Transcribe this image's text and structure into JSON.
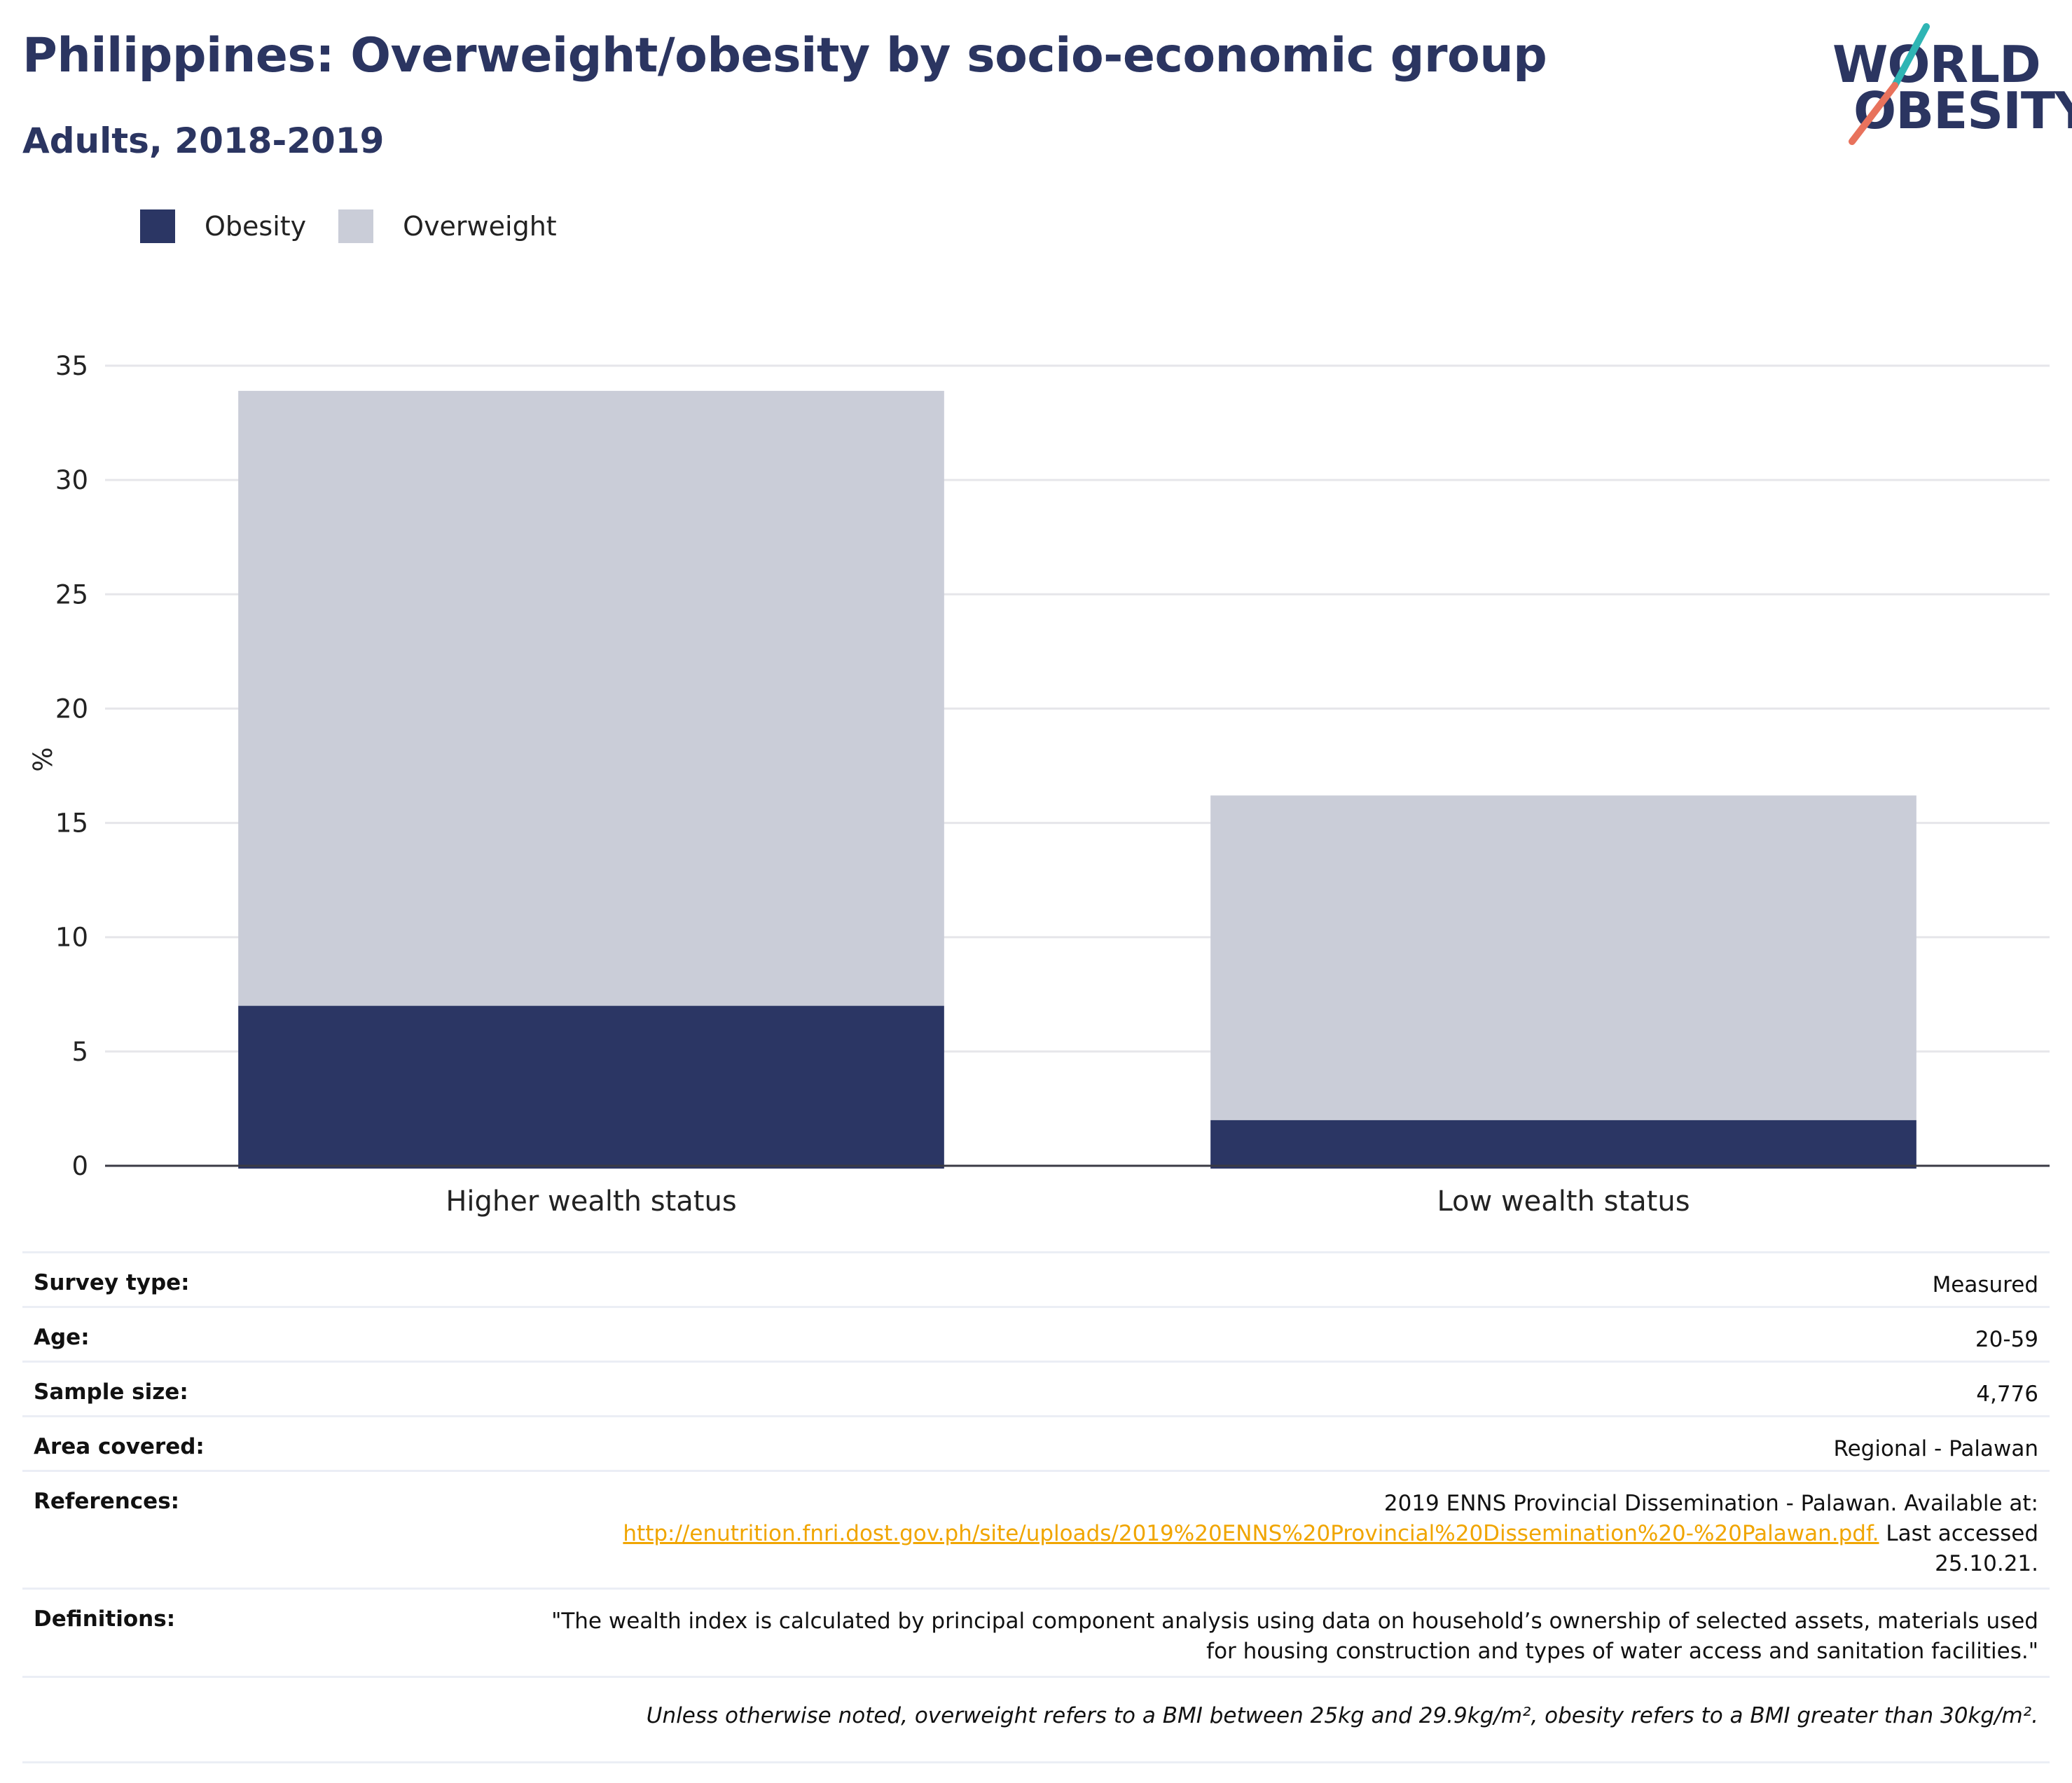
{
  "header": {
    "title": "Philippines: Overweight/obesity by socio-economic group",
    "subtitle": "Adults, 2018-2019"
  },
  "logo": {
    "line1": "WORLD",
    "line2": "OBESITY"
  },
  "colors": {
    "obesity": "#2b3664",
    "overweight": "#cacdd8",
    "accent_teal": "#2fb5b4",
    "accent_coral": "#e8725c",
    "link": "#f0a500"
  },
  "legend": [
    "Obesity",
    "Overweight"
  ],
  "chart_data": {
    "type": "bar",
    "stacked": true,
    "categories": [
      "Higher wealth status",
      "Low wealth status"
    ],
    "series": [
      {
        "name": "Obesity",
        "values": [
          7.0,
          2.0
        ]
      },
      {
        "name": "Overweight",
        "values": [
          26.9,
          14.2
        ]
      }
    ],
    "ylabel": "%",
    "ylim": [
      0,
      35
    ],
    "yticks": [
      0,
      5,
      10,
      15,
      20,
      25,
      30,
      35
    ],
    "grid": true,
    "legend_position": "top-left"
  },
  "meta": {
    "survey_type": {
      "label": "Survey type:",
      "value": "Measured"
    },
    "age": {
      "label": "Age:",
      "value": "20-59"
    },
    "sample_size": {
      "label": "Sample size:",
      "value": "4,776"
    },
    "area": {
      "label": "Area covered:",
      "value": "Regional - Palawan"
    },
    "references": {
      "label": "References:",
      "text_before": "2019 ENNS Provincial Dissemination - Palawan. Available at:",
      "link": "http://enutrition.fnri.dost.gov.ph/site/uploads/2019%20ENNS%20Provincial%20Dissemination%20-%20Palawan.pdf.",
      "text_after": "Last accessed",
      "text_date": "25.10.21."
    },
    "definitions": {
      "label": "Definitions:",
      "line1": "\"The wealth index is calculated by principal component analysis using data on household’s ownership of selected assets, materials used",
      "line2": "for housing construction and types of water access and sanitation facilities.\""
    },
    "note": "Unless otherwise noted, overweight refers to a BMI between 25kg and 29.9kg/m², obesity refers to a BMI greater than 30kg/m²."
  }
}
